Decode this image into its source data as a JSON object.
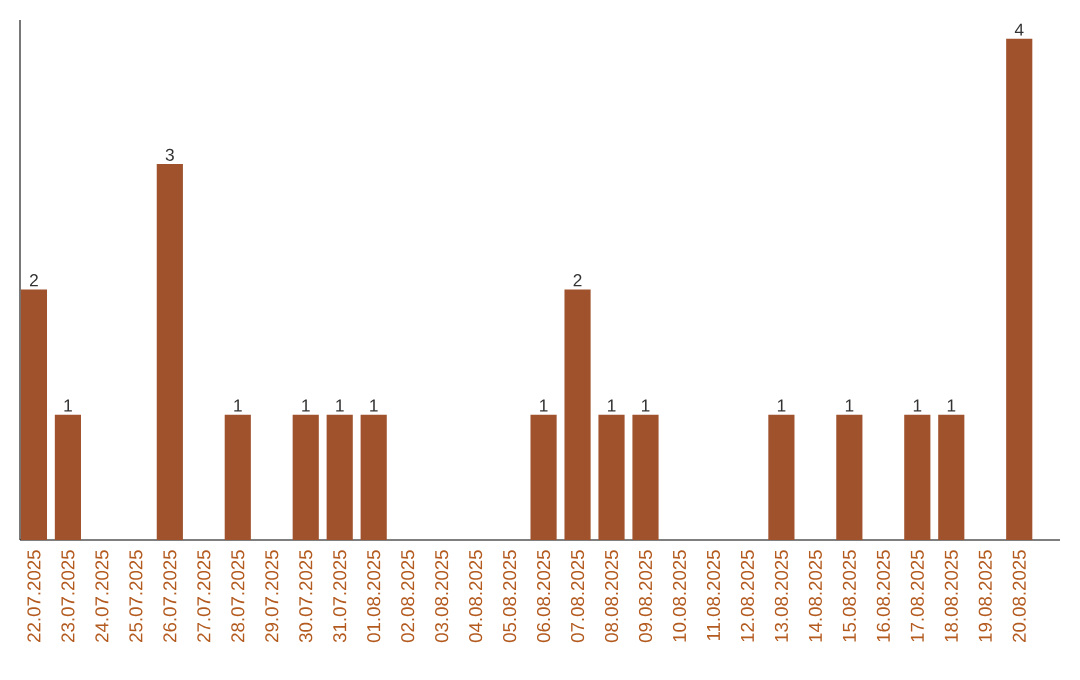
{
  "chart_data": {
    "type": "bar",
    "categories": [
      "22.07.2025",
      "23.07.2025",
      "24.07.2025",
      "25.07.2025",
      "26.07.2025",
      "27.07.2025",
      "28.07.2025",
      "29.07.2025",
      "30.07.2025",
      "31.07.2025",
      "01.08.2025",
      "02.08.2025",
      "03.08.2025",
      "04.08.2025",
      "05.08.2025",
      "06.08.2025",
      "07.08.2025",
      "08.08.2025",
      "09.08.2025",
      "10.08.2025",
      "11.08.2025",
      "12.08.2025",
      "13.08.2025",
      "14.08.2025",
      "15.08.2025",
      "16.08.2025",
      "17.08.2025",
      "18.08.2025",
      "19.08.2025",
      "20.08.2025"
    ],
    "values": [
      2,
      1,
      0,
      0,
      3,
      0,
      1,
      0,
      1,
      1,
      1,
      0,
      0,
      0,
      0,
      1,
      2,
      1,
      1,
      0,
      0,
      0,
      1,
      0,
      1,
      0,
      1,
      1,
      0,
      4
    ],
    "value_labels": [
      "2",
      "1",
      null,
      null,
      "3",
      null,
      "1",
      null,
      "1",
      "1",
      "1",
      null,
      null,
      null,
      null,
      "1",
      "2",
      "1",
      "1",
      null,
      null,
      null,
      "1",
      null,
      "1",
      null,
      "1",
      "1",
      null,
      "4"
    ],
    "color": "#a0522d",
    "ylim": [
      0,
      4.15
    ],
    "tick_labels": "x",
    "grid": false
  }
}
